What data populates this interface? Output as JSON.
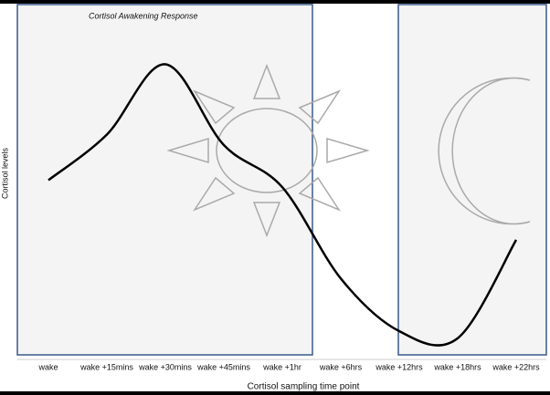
{
  "chart_data": {
    "type": "line",
    "annotation": "Cortisol Awakening Response",
    "x_label": "Cortisol sampling time point",
    "y_label": "Cortisol levels",
    "categories": [
      "wake",
      "wake +15mins",
      "wake +30mins",
      "wake +45mins",
      "wake +1hr",
      "wake +6hrs",
      "wake +12hrs",
      "wake +18hrs",
      "wake +22hrs"
    ],
    "values": [
      50,
      63,
      83,
      60,
      48,
      22,
      7,
      5,
      33
    ],
    "color": "#000000",
    "ylim": [
      0,
      100
    ]
  }
}
